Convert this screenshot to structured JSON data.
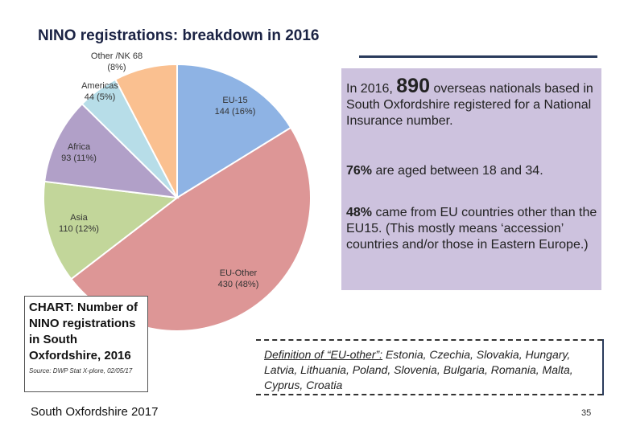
{
  "title": "NINO registrations: breakdown in 2016",
  "chart_data": {
    "type": "pie",
    "slices": [
      {
        "name": "EU-15",
        "value": 144,
        "pct": "16%",
        "color": "#8eb3e4"
      },
      {
        "name": "EU-Other",
        "value": 430,
        "pct": "48%",
        "color": "#dd9696"
      },
      {
        "name": "Asia",
        "value": 110,
        "pct": "12%",
        "color": "#c2d69a"
      },
      {
        "name": "Africa",
        "value": 93,
        "pct": "11%",
        "color": "#b1a0c8"
      },
      {
        "name": "Americas",
        "value": 44,
        "pct": "5%",
        "color": "#b7dde8"
      },
      {
        "name": "Other /NK",
        "value": 68,
        "pct": "8%",
        "color": "#fac090"
      }
    ],
    "labels": {
      "eu15": [
        "EU-15",
        "144 (16%)"
      ],
      "euother": [
        "EU-Other",
        "430 (48%)"
      ],
      "asia": [
        "Asia",
        "110 (12%)"
      ],
      "africa": [
        "Africa",
        "93 (11%)"
      ],
      "americas": [
        "Americas",
        "44 (5%)"
      ],
      "other": [
        "Other /NK 68",
        "(8%)"
      ]
    }
  },
  "info": {
    "p1_pre": "In 2016, ",
    "p1_num": "890",
    "p1_post": " overseas nationals based in South Oxfordshire registered for a National Insurance number.",
    "p2_bold": "76%",
    "p2_rest": " are aged between 18 and 34.",
    "p3_bold": "48%",
    "p3_rest": " came from EU countries other than the EU15.  (This mostly means ‘accession’ countries and/or those in Eastern Europe.)"
  },
  "chart_caption": {
    "heading": "CHART: Number of NINO registrations in South Oxfordshire, 2016",
    "source": "Source: DWP Stat X-plore, 02/05/17"
  },
  "definition": {
    "label": "Definition of “EU-other”:",
    "text": " Estonia, Czechia, Slovakia, Hungary, Latvia, Lithuania, Poland, Slovenia, Bulgaria, Romania, Malta, Cyprus, Croatia"
  },
  "footer": "South Oxfordshire  2017",
  "page_number": "35"
}
